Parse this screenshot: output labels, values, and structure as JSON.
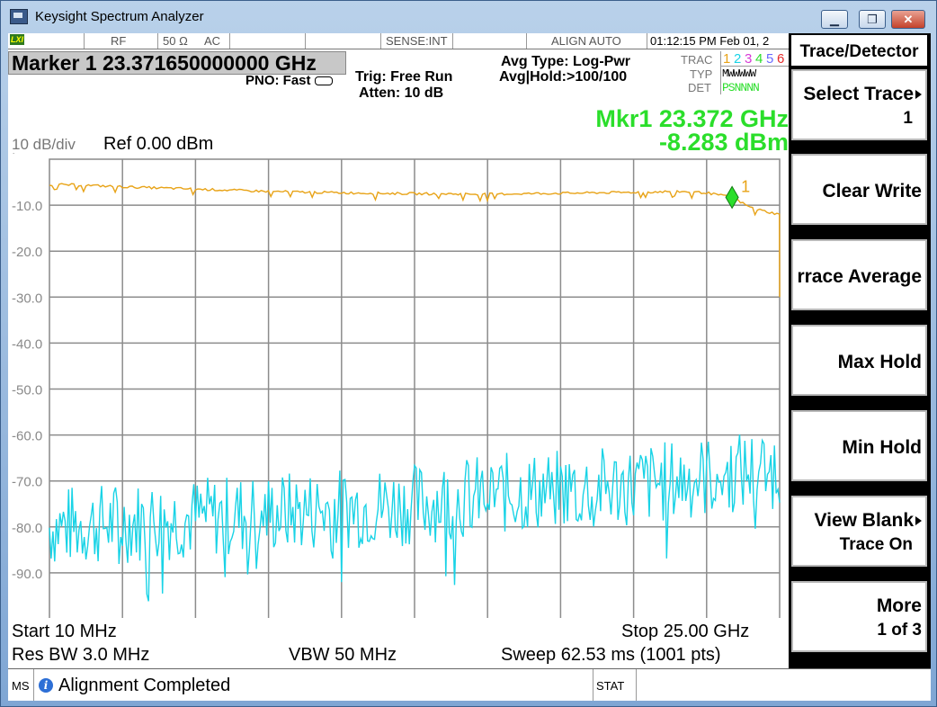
{
  "window": {
    "title": "Keysight Spectrum Analyzer",
    "minimize": "▁",
    "restore": "❐",
    "close": "✕"
  },
  "status_bar": {
    "lxi": "LXI",
    "rf": "RF",
    "impedance": "50 Ω",
    "coupling": "AC",
    "sense": "SENSE:INT",
    "align": "ALIGN AUTO",
    "datetime": "01:12:15 PM Feb 01, 2"
  },
  "marker": {
    "readout": "Marker 1 23.371650000000 GHz",
    "pno": "PNO: Fast",
    "trig": "Trig: Free Run",
    "atten": "Atten: 10 dB",
    "avg_type": "Avg Type: Log-Pwr",
    "avg_hold": "Avg|Hold:>100/100",
    "mkr_freq": "Mkr1 23.372 GHz",
    "mkr_amp": "-8.283 dBm",
    "mkr_label": "1"
  },
  "trace_table": {
    "trac_label": "TRAC",
    "typ_label": "TYP",
    "det_label": "DET",
    "numbers": [
      {
        "n": "1",
        "color": "#e8a317"
      },
      {
        "n": "2",
        "color": "#19d3e6"
      },
      {
        "n": "3",
        "color": "#d63ad6"
      },
      {
        "n": "4",
        "color": "#2bde2b"
      },
      {
        "n": "5",
        "color": "#6a6aff"
      },
      {
        "n": "6",
        "color": "#e62b2b"
      }
    ],
    "typ": "MWWWWW",
    "det": "PSNNNN"
  },
  "scale": {
    "div": "10 dB/div",
    "log": "Log",
    "ref": "Ref 0.00 dBm"
  },
  "softkeys": {
    "title": "Trace/Detector",
    "keys": [
      {
        "l1": "Select Trace",
        "l2": "1"
      },
      {
        "l1": "Clear Write",
        "l2": ""
      },
      {
        "l1": "rrace Average",
        "l2": ""
      },
      {
        "l1": "Max Hold",
        "l2": ""
      },
      {
        "l1": "Min Hold",
        "l2": ""
      },
      {
        "l1": "View Blank",
        "l2": "Trace On"
      },
      {
        "l1": "More",
        "l2": "1 of 3"
      }
    ]
  },
  "bottom": {
    "start": "Start  10 MHz",
    "stop": "Stop 25.00 GHz",
    "rbw": "Res BW  3.0 MHz",
    "vbw": "VBW  50 MHz",
    "sweep": "Sweep   62.53 ms (1001 pts)"
  },
  "message_bar": {
    "ms": "MS",
    "info": "i",
    "message": "Alignment Completed",
    "stat": "STAT"
  },
  "chart_data": {
    "type": "line",
    "ylim": [
      -100,
      0
    ],
    "xlim_ghz": [
      0.01,
      25.0
    ],
    "y_ticks": [
      "-10.0",
      "-20.0",
      "-30.0",
      "-40.0",
      "-50.0",
      "-60.0",
      "-70.0",
      "-80.0",
      "-90.0"
    ],
    "grid": true,
    "series": [
      {
        "color": "#e8a317",
        "x_ghz": [
          0.01,
          1.0,
          2.5,
          5.0,
          7.5,
          10.0,
          12.5,
          15.0,
          17.5,
          20.0,
          21.5,
          22.5,
          23.37,
          24.0,
          24.6,
          24.99,
          25.0
        ],
        "y": [
          -5.5,
          -5.6,
          -6.0,
          -6.5,
          -7.0,
          -7.3,
          -7.5,
          -7.6,
          -7.4,
          -7.2,
          -7.0,
          -7.3,
          -8.3,
          -10.5,
          -11.5,
          -12.0,
          -30.0
        ]
      },
      {
        "color": "#19d3e6",
        "x_ghz": [
          0.01,
          2.5,
          5.0,
          7.5,
          10.0,
          12.5,
          15.0,
          17.5,
          20.0,
          22.5,
          25.0
        ],
        "y": [
          -80,
          -79,
          -78,
          -77,
          -76,
          -75,
          -73,
          -72,
          -71,
          -69,
          -67
        ]
      }
    ],
    "marker": {
      "x_ghz": 23.372,
      "y": -8.283,
      "label": "1"
    }
  }
}
